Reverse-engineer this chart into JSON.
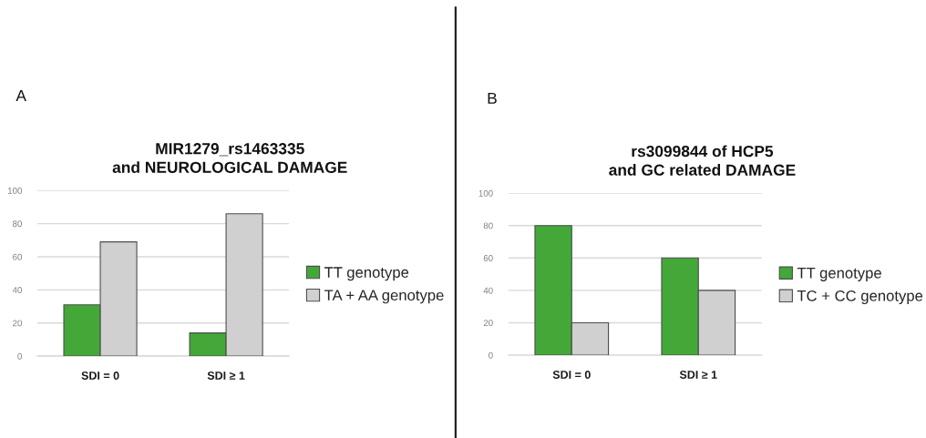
{
  "chart_data": [
    {
      "type": "bar",
      "title": "MIR1279_rs1463335\nand NEUROLOGICAL DAMAGE",
      "annotations": [
        "A"
      ],
      "categories": [
        "SDI = 0",
        "SDI ≥ 1"
      ],
      "series": [
        {
          "name": "TT genotype",
          "color": "#43a838",
          "values": [
            31,
            14
          ]
        },
        {
          "name": "TA + AA genotype",
          "color": "#d0d0d0",
          "values": [
            69,
            86
          ]
        }
      ],
      "ylim": [
        0,
        100
      ],
      "yticks": [
        0,
        20,
        40,
        60,
        80,
        100
      ],
      "grid": "y",
      "legend": "right"
    },
    {
      "type": "bar",
      "title": "rs3099844 of HCP5\nand GC related DAMAGE",
      "annotations": [
        "B"
      ],
      "categories": [
        "SDI = 0",
        "SDI ≥ 1"
      ],
      "series": [
        {
          "name": "TT genotype",
          "color": "#43a838",
          "values": [
            80,
            60
          ]
        },
        {
          "name": "TC + CC genotype",
          "color": "#d0d0d0",
          "values": [
            20,
            40
          ]
        }
      ],
      "ylim": [
        0,
        100
      ],
      "yticks": [
        0,
        20,
        40,
        60,
        80,
        100
      ],
      "grid": "y",
      "legend": "right"
    }
  ]
}
